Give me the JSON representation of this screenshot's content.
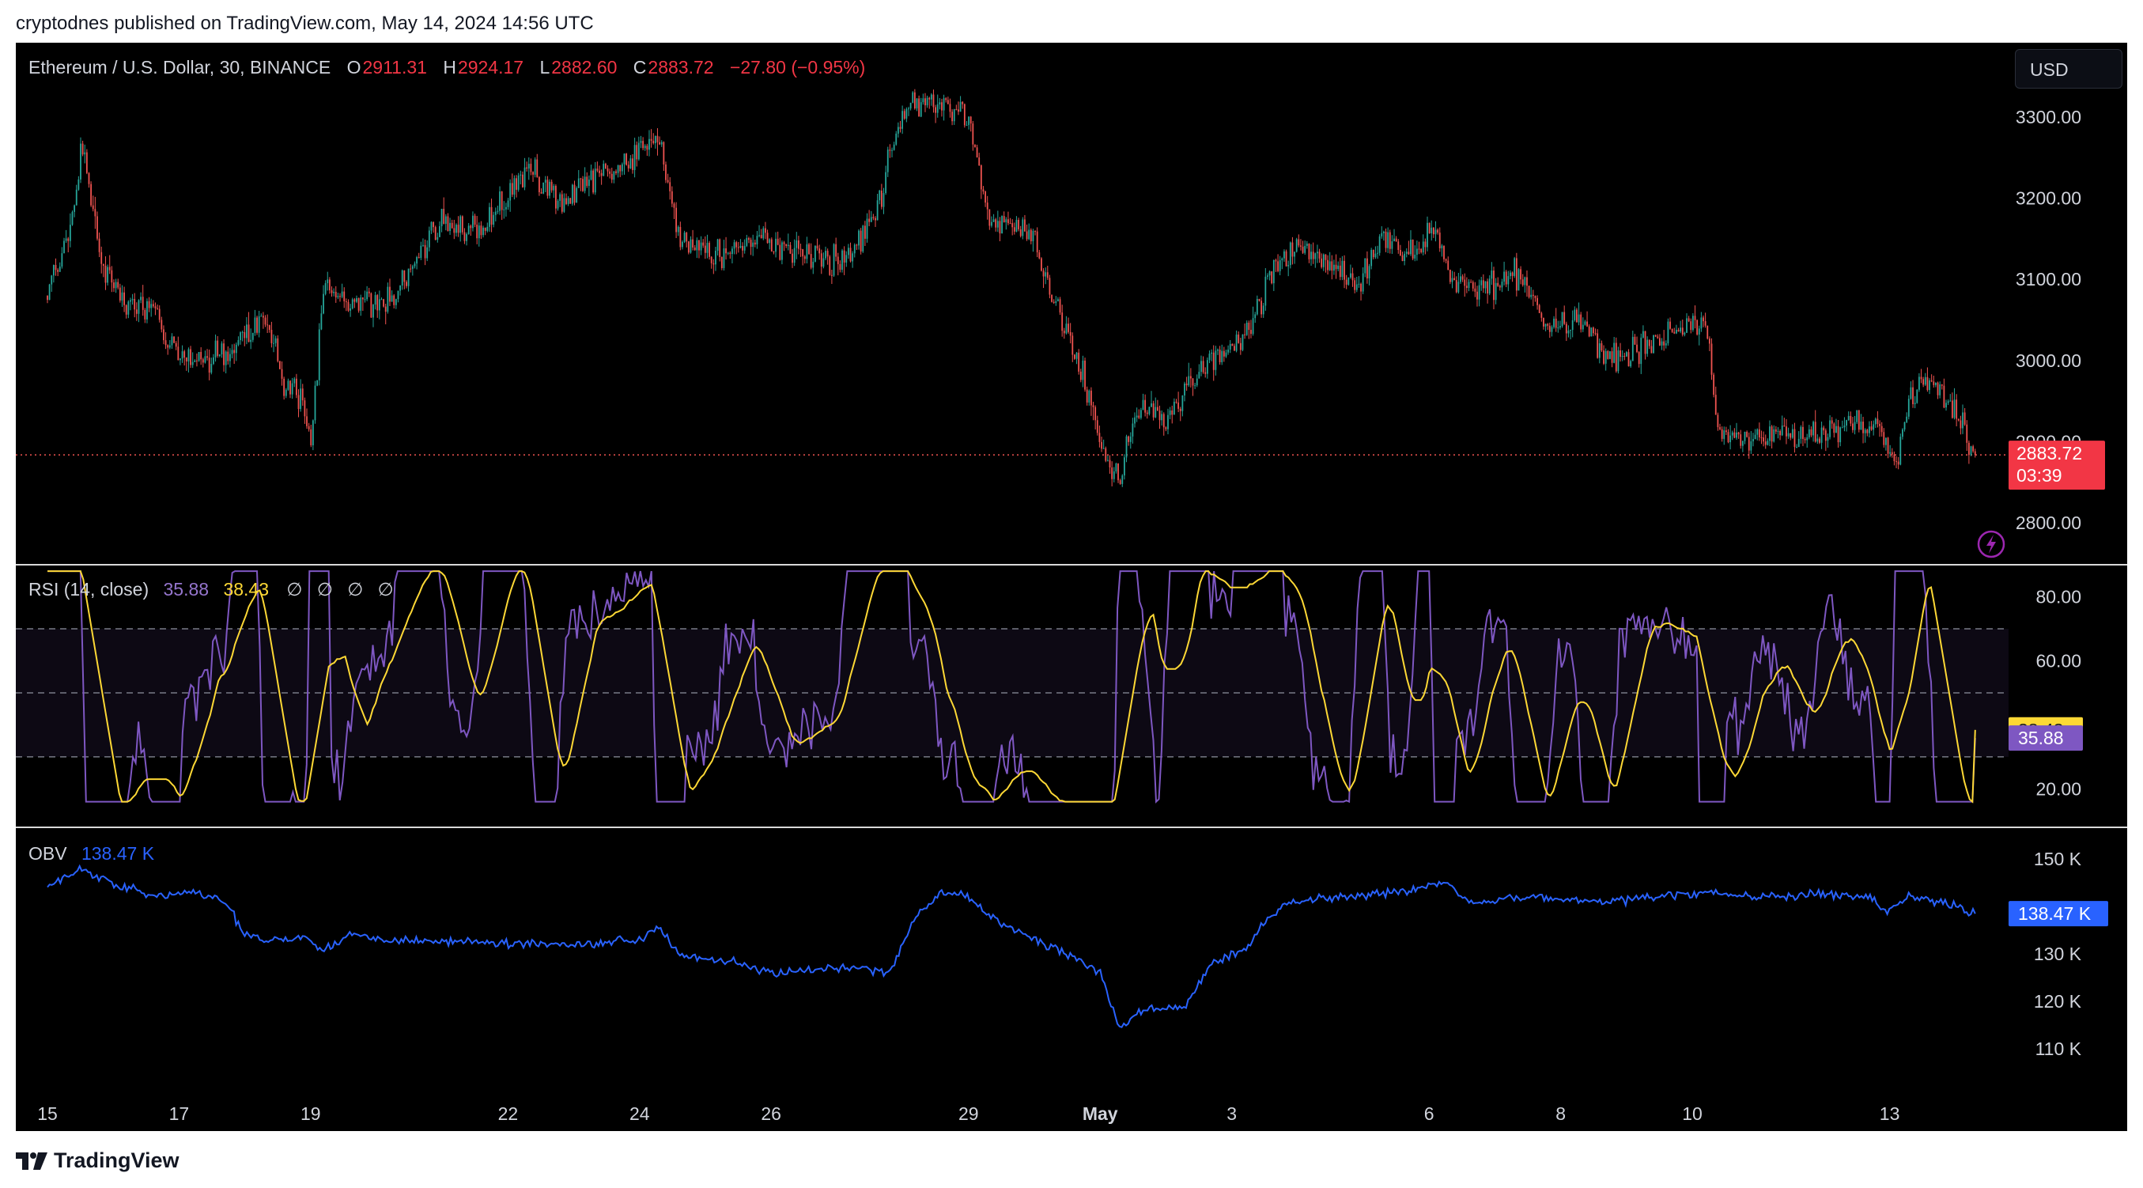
{
  "header": {
    "published_by": "cryptodnes published on TradingView.com, May 14, 2024 14:56 UTC"
  },
  "legend": {
    "symbol": "Ethereum / U.S. Dollar, 30, BINANCE",
    "o_label": "O",
    "o_value": "2911.31",
    "h_label": "H",
    "h_value": "2924.17",
    "l_label": "L",
    "l_value": "2882.60",
    "c_label": "C",
    "c_value": "2883.72",
    "change": "−27.80 (−0.95%)",
    "rsi_title": "RSI (14, close)",
    "rsi_value": "35.88",
    "rsi_ma_value": "38.43",
    "rsi_nulls": "∅ ∅ ∅ ∅",
    "obv_title": "OBV",
    "obv_value": "138.47 K"
  },
  "currency_button": "USD",
  "badges": {
    "price": "2883.72",
    "countdown": "03:39",
    "rsi_ma": "38.43",
    "rsi": "35.88",
    "obv": "138.47 K"
  },
  "footer": {
    "brand": "TradingView"
  },
  "colors": {
    "up": "#26a69a",
    "down": "#ef5350",
    "rsi": "#7e57c2",
    "rsi_ma": "#fdd835",
    "obv": "#2962ff",
    "background": "#000000"
  },
  "icons": [
    "lightning-icon",
    "tradingview-logo-icon"
  ],
  "chart_data": [
    {
      "type": "candlestick",
      "title": "Ethereum / U.S. Dollar, 30, BINANCE",
      "y_ticks": [
        "3300.00",
        "3200.00",
        "3100.00",
        "3000.00",
        "2900.00",
        "2800.00"
      ],
      "ylim": [
        2760,
        3380
      ],
      "x_ticks": [
        "15",
        "17",
        "19",
        "22",
        "24",
        "26",
        "29",
        "May",
        "3",
        "6",
        "8",
        "10",
        "13"
      ],
      "x_tick_days": [
        0,
        2,
        4,
        7,
        9,
        11,
        14,
        16,
        18,
        21,
        23,
        25,
        28
      ],
      "current_price": 2883.72,
      "anchors": [
        [
          0,
          3080
        ],
        [
          0.35,
          3160
        ],
        [
          0.55,
          3270
        ],
        [
          0.8,
          3120
        ],
        [
          1.2,
          3070
        ],
        [
          1.6,
          3060
        ],
        [
          2.0,
          3000
        ],
        [
          2.4,
          3000
        ],
        [
          2.8,
          3010
        ],
        [
          3.3,
          3060
        ],
        [
          3.6,
          2970
        ],
        [
          3.85,
          2960
        ],
        [
          4.0,
          2890
        ],
        [
          4.2,
          3090
        ],
        [
          4.6,
          3070
        ],
        [
          5.3,
          3080
        ],
        [
          6.0,
          3170
        ],
        [
          6.6,
          3160
        ],
        [
          7.3,
          3240
        ],
        [
          7.8,
          3200
        ],
        [
          8.5,
          3230
        ],
        [
          9.3,
          3280
        ],
        [
          9.6,
          3150
        ],
        [
          10.2,
          3130
        ],
        [
          10.8,
          3150
        ],
        [
          11.5,
          3130
        ],
        [
          12.1,
          3120
        ],
        [
          12.6,
          3180
        ],
        [
          13.0,
          3310
        ],
        [
          13.5,
          3320
        ],
        [
          14.0,
          3300
        ],
        [
          14.3,
          3180
        ],
        [
          14.8,
          3160
        ],
        [
          15.0,
          3150
        ],
        [
          15.3,
          3070
        ],
        [
          15.6,
          3010
        ],
        [
          15.8,
          2960
        ],
        [
          16.1,
          2880
        ],
        [
          16.3,
          2860
        ],
        [
          16.5,
          2930
        ],
        [
          16.8,
          2940
        ],
        [
          17.0,
          2920
        ],
        [
          17.3,
          2970
        ],
        [
          17.7,
          3000
        ],
        [
          18.1,
          3020
        ],
        [
          18.4,
          3060
        ],
        [
          18.7,
          3120
        ],
        [
          19.1,
          3140
        ],
        [
          19.5,
          3120
        ],
        [
          19.9,
          3090
        ],
        [
          20.3,
          3150
        ],
        [
          20.8,
          3130
        ],
        [
          21.1,
          3170
        ],
        [
          21.3,
          3100
        ],
        [
          21.8,
          3090
        ],
        [
          22.3,
          3110
        ],
        [
          22.8,
          3040
        ],
        [
          23.3,
          3050
        ],
        [
          23.8,
          3000
        ],
        [
          24.3,
          3020
        ],
        [
          24.8,
          3040
        ],
        [
          25.2,
          3050
        ],
        [
          25.4,
          2910
        ],
        [
          25.9,
          2900
        ],
        [
          26.4,
          2910
        ],
        [
          26.9,
          2900
        ],
        [
          27.3,
          2920
        ],
        [
          27.8,
          2920
        ],
        [
          28.1,
          2875
        ],
        [
          28.3,
          2950
        ],
        [
          28.6,
          2980
        ],
        [
          29.0,
          2950
        ],
        [
          29.2,
          2900
        ],
        [
          29.3,
          2883.72
        ]
      ]
    },
    {
      "type": "line",
      "title": "RSI (14, close)",
      "series": [
        {
          "name": "RSI",
          "last": 35.88
        },
        {
          "name": "RSI-based MA",
          "last": 38.43
        }
      ],
      "y_ticks": [
        "80.00",
        "60.00",
        "20.00"
      ],
      "ylim": [
        8,
        90
      ],
      "bands": [
        70,
        50,
        30
      ]
    },
    {
      "type": "line",
      "title": "OBV",
      "series": [
        {
          "name": "OBV",
          "last": 138.47
        }
      ],
      "unit": "K",
      "y_ticks": [
        "150 K",
        "130 K",
        "120 K",
        "110 K"
      ],
      "ylim": [
        105,
        155
      ],
      "anchors": [
        [
          0,
          144
        ],
        [
          0.5,
          148
        ],
        [
          1.0,
          145
        ],
        [
          1.6,
          142
        ],
        [
          2.2,
          143
        ],
        [
          2.7,
          141
        ],
        [
          3.0,
          134
        ],
        [
          3.5,
          133
        ],
        [
          3.9,
          133.5
        ],
        [
          4.2,
          131
        ],
        [
          4.6,
          134
        ],
        [
          5.3,
          133
        ],
        [
          6.5,
          132.5
        ],
        [
          8.0,
          132
        ],
        [
          9.0,
          133
        ],
        [
          9.3,
          136
        ],
        [
          9.6,
          130
        ],
        [
          10.5,
          128
        ],
        [
          11.0,
          126
        ],
        [
          12.3,
          127
        ],
        [
          12.8,
          126
        ],
        [
          13.2,
          138
        ],
        [
          13.6,
          143
        ],
        [
          14.0,
          142
        ],
        [
          14.3,
          138
        ],
        [
          15.0,
          133
        ],
        [
          15.5,
          130
        ],
        [
          16.0,
          126
        ],
        [
          16.3,
          114
        ],
        [
          16.6,
          118
        ],
        [
          17.3,
          119
        ],
        [
          17.7,
          128
        ],
        [
          18.2,
          131
        ],
        [
          18.5,
          137
        ],
        [
          18.9,
          141
        ],
        [
          19.5,
          142
        ],
        [
          20.5,
          143
        ],
        [
          21.3,
          145
        ],
        [
          21.6,
          141
        ],
        [
          22.5,
          142
        ],
        [
          23.5,
          141
        ],
        [
          24.5,
          142
        ],
        [
          25.2,
          143
        ],
        [
          26.0,
          142
        ],
        [
          27.0,
          142.5
        ],
        [
          27.7,
          142
        ],
        [
          27.9,
          139
        ],
        [
          28.3,
          142
        ],
        [
          28.8,
          141
        ],
        [
          29.3,
          138.47
        ]
      ]
    }
  ]
}
